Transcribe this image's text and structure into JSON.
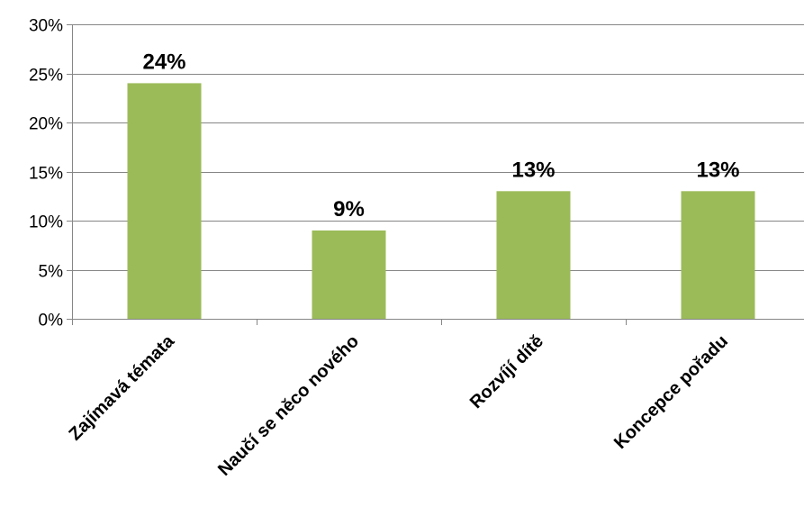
{
  "chart_data": {
    "type": "bar",
    "categories": [
      "Zajímavá témata",
      "Naučí se něco nového",
      "Rozvíjí dítě",
      "Koncepce pořadu"
    ],
    "values": [
      24,
      9,
      13,
      13
    ],
    "value_labels": [
      "24%",
      "9%",
      "13%",
      "13%"
    ],
    "y_ticks": [
      "0%",
      "5%",
      "10%",
      "15%",
      "20%",
      "25%",
      "30%"
    ],
    "ylim": [
      0,
      30
    ],
    "grid": true,
    "legend": "none",
    "title": "",
    "xlabel": "",
    "ylabel": "",
    "bar_color": "#9BBB59",
    "grid_color": "#868686"
  }
}
